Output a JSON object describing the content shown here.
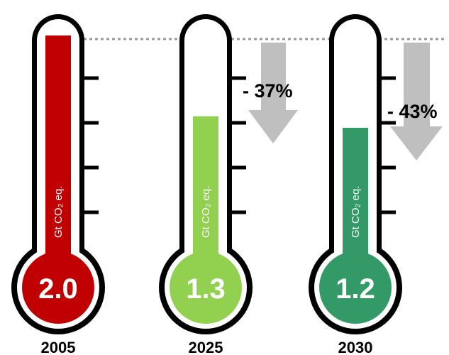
{
  "chart_data": {
    "type": "bar",
    "title": "",
    "xlabel": "",
    "ylabel": "",
    "unit": "Gt CO₂ eq.",
    "categories": [
      "2005",
      "2025",
      "2030"
    ],
    "values": [
      2.0,
      1.3,
      1.2
    ],
    "value_labels": [
      "2.0",
      "1.3",
      "1.2"
    ],
    "unit_labels": [
      "Gt CO₂ eq.",
      "Gt CO₂ eq.",
      "Gt CO₂ eq."
    ],
    "reductions": [
      "",
      "- 37%",
      "- 43%"
    ],
    "ylim": [
      0,
      2.0
    ],
    "grid": false,
    "reference_line": "2005 level (dotted)"
  },
  "colors": {
    "2005": "#c00000",
    "2025": "#92d050",
    "2030": "#339966",
    "outline": "#000000",
    "arrow": "#bfbfbf",
    "reference_line": "#999999"
  }
}
